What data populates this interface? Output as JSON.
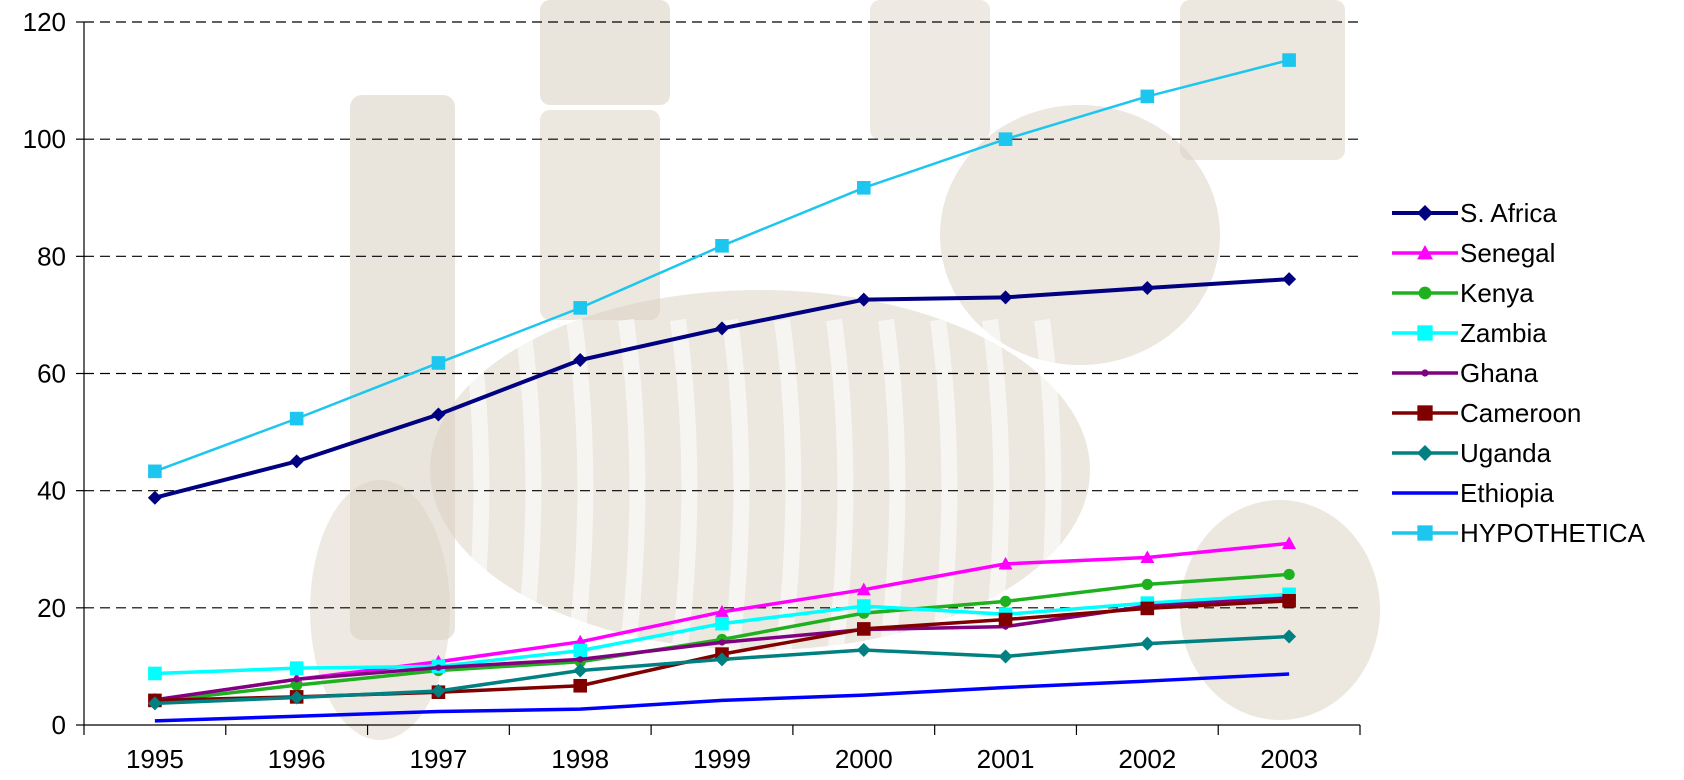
{
  "chart_data": {
    "type": "line",
    "title": "",
    "xlabel": "",
    "ylabel": "",
    "categories": [
      "1995",
      "1996",
      "1997",
      "1998",
      "1999",
      "2000",
      "2001",
      "2002",
      "2003"
    ],
    "ylim": [
      0,
      120
    ],
    "yticks": [
      0,
      20,
      40,
      60,
      80,
      100,
      120
    ],
    "grid": "horizontal dashed",
    "legend_position": "right",
    "background": "faded beige illustration of a zebra and African artwork behind the plot",
    "series": [
      {
        "name": "S. Africa",
        "color": "#000080",
        "marker": "diamond",
        "values": [
          38.8,
          45,
          53,
          62.3,
          67.7,
          72.6,
          73,
          74.6,
          76.1
        ]
      },
      {
        "name": "Senegal",
        "color": "#FF00FF",
        "marker": "triangle",
        "values": [
          4.3,
          7.8,
          10.8,
          14.2,
          19.3,
          23.1,
          27.5,
          28.6,
          31
        ]
      },
      {
        "name": "Kenya",
        "color": "#1FB01F",
        "marker": "circle",
        "values": [
          4,
          6.8,
          9.3,
          10.8,
          14.6,
          19.1,
          21.1,
          24,
          25.7
        ]
      },
      {
        "name": "Zambia",
        "color": "#00FFFF",
        "marker": "square",
        "values": [
          8.8,
          9.7,
          10,
          12.7,
          17.3,
          20.3,
          18.9,
          20.8,
          22.3
        ]
      },
      {
        "name": "Ghana",
        "color": "#800080",
        "marker": "dot",
        "values": [
          4.3,
          7.8,
          9.8,
          11.2,
          14.1,
          16.3,
          16.8,
          20.3,
          21.7
        ]
      },
      {
        "name": "Cameroon",
        "color": "#800000",
        "marker": "square",
        "values": [
          4.2,
          4.8,
          5.6,
          6.7,
          12.1,
          16.4,
          18,
          19.9,
          21.2
        ]
      },
      {
        "name": "Uganda",
        "color": "#008080",
        "marker": "diamond",
        "values": [
          3.7,
          4.7,
          5.8,
          9.3,
          11.2,
          12.8,
          11.7,
          13.9,
          15.1
        ]
      },
      {
        "name": "Ethiopia",
        "color": "#0000FF",
        "marker": "none",
        "values": [
          0.7,
          1.5,
          2.3,
          2.7,
          4.2,
          5.1,
          6.4,
          7.5,
          8.7
        ]
      },
      {
        "name": "HYPOTHETICA",
        "color": "#1CC6EE",
        "marker": "square",
        "values": [
          43.3,
          52.3,
          61.8,
          71.2,
          81.8,
          91.7,
          100,
          107.3,
          113.5
        ]
      }
    ]
  }
}
